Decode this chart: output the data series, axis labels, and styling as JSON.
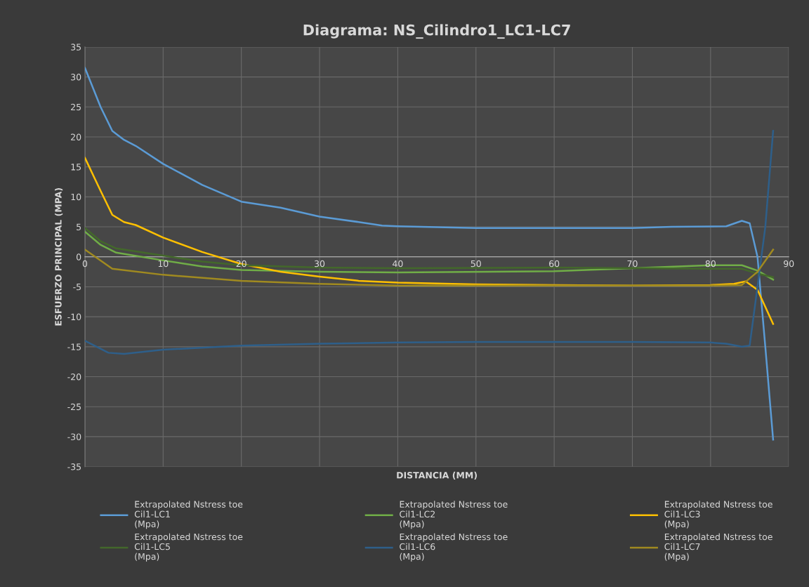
{
  "chart_data": {
    "type": "line",
    "title": "Diagrama: NS_Cilindro1_LC1-LC7",
    "xlabel": "DISTANCIA (MM)",
    "ylabel": "ESFUERZO PRINCIPAL (MPA)",
    "xlim": [
      0,
      90
    ],
    "xticks": [
      0,
      10,
      20,
      30,
      40,
      50,
      60,
      70,
      80,
      90
    ],
    "ylim": [
      -35,
      35
    ],
    "yticks": [
      -35,
      -30,
      -25,
      -20,
      -15,
      -10,
      -5,
      0,
      5,
      10,
      15,
      20,
      25,
      30,
      35
    ],
    "grid": true,
    "legend": "bottom",
    "marker": "none",
    "line_style": "solid",
    "series": [
      {
        "name": "Extrapolated Nstress toe\nCil1-LC1\n(Mpa)",
        "color": "#5b9bd5",
        "x": [
          0,
          2,
          3.5,
          5,
          6.5,
          10,
          15,
          20,
          25,
          30,
          35,
          38,
          40,
          50,
          60,
          70,
          75,
          82,
          84,
          85,
          86,
          87,
          88
        ],
        "values": [
          31.5,
          25,
          21,
          19.5,
          18.5,
          15.5,
          12,
          9.2,
          8.2,
          6.7,
          5.8,
          5.2,
          5.1,
          4.8,
          4.8,
          4.8,
          5,
          5.1,
          6,
          5.6,
          0,
          -15,
          -30.5
        ]
      },
      {
        "name": "Extrapolated Nstress toe\nCil1-LC2\n(Mpa)",
        "color": "#70ad47",
        "x": [
          0,
          2,
          4,
          10,
          15,
          20,
          30,
          40,
          60,
          80,
          84,
          86,
          88
        ],
        "values": [
          4.2,
          2.0,
          0.7,
          -0.6,
          -1.6,
          -2.2,
          -2.5,
          -2.6,
          -2.4,
          -1.4,
          -1.4,
          -2.3,
          -3.8
        ]
      },
      {
        "name": "Extrapolated Nstress toe\nCil1-LC3\n(Mpa)",
        "color": "#ffc000",
        "x": [
          0,
          2,
          3.5,
          5,
          6.5,
          10,
          15,
          20,
          25,
          30,
          35,
          40,
          50,
          60,
          70,
          80,
          83,
          84.5,
          86,
          88
        ],
        "values": [
          16.5,
          11,
          7,
          5.8,
          5.3,
          3.2,
          0.8,
          -1.2,
          -2.5,
          -3.3,
          -4,
          -4.3,
          -4.6,
          -4.7,
          -4.8,
          -4.7,
          -4.5,
          -4.1,
          -5.5,
          -11.2
        ]
      },
      {
        "name": "Extrapolated Nstress toe\nCil1-LC5\n(Mpa)",
        "color": "#43682b",
        "x": [
          0,
          2,
          4,
          10,
          15,
          20,
          30,
          40,
          60,
          80,
          84,
          86,
          88
        ],
        "values": [
          4.8,
          2.6,
          1.4,
          0.2,
          -0.8,
          -1.4,
          -1.8,
          -1.9,
          -1.8,
          -2.0,
          -2.0,
          -2.8,
          -3.4
        ]
      },
      {
        "name": "Extrapolated Nstress toe\nCil1-LC6\n(Mpa)",
        "color": "#2e5f8a",
        "x": [
          0,
          3,
          5,
          10,
          20,
          30,
          40,
          50,
          60,
          70,
          80,
          82,
          84,
          85,
          86,
          87,
          88
        ],
        "values": [
          -14,
          -16,
          -16.2,
          -15.5,
          -14.8,
          -14.5,
          -14.3,
          -14.2,
          -14.2,
          -14.2,
          -14.3,
          -14.5,
          -15,
          -14.8,
          -5,
          5,
          21
        ]
      },
      {
        "name": "Extrapolated Nstress toe\nCil1-LC7\n(Mpa)",
        "color": "#a08a20",
        "x": [
          0,
          3.5,
          10,
          20,
          30,
          40,
          60,
          80,
          84,
          86,
          88
        ],
        "values": [
          1.2,
          -2,
          -3,
          -4,
          -4.5,
          -4.8,
          -4.8,
          -4.8,
          -4.7,
          -2.5,
          1.2
        ]
      }
    ]
  }
}
